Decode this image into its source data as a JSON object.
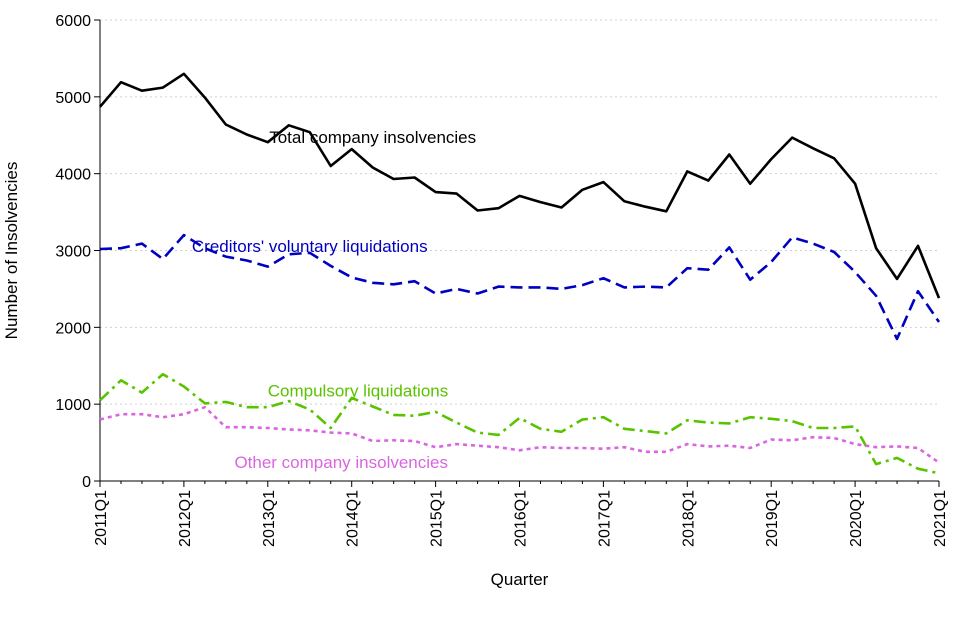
{
  "chart_data": {
    "type": "line",
    "xlabel": "Quarter",
    "ylabel": "Number of Insolvencies",
    "ylim": [
      0,
      6000
    ],
    "yticks": [
      0,
      1000,
      2000,
      3000,
      4000,
      5000,
      6000
    ],
    "grid": "horizontal-dotted",
    "x": [
      "2011Q1",
      "2011Q2",
      "2011Q3",
      "2011Q4",
      "2012Q1",
      "2012Q2",
      "2012Q3",
      "2012Q4",
      "2013Q1",
      "2013Q2",
      "2013Q3",
      "2013Q4",
      "2014Q1",
      "2014Q2",
      "2014Q3",
      "2014Q4",
      "2015Q1",
      "2015Q2",
      "2015Q3",
      "2015Q4",
      "2016Q1",
      "2016Q2",
      "2016Q3",
      "2016Q4",
      "2017Q1",
      "2017Q2",
      "2017Q3",
      "2017Q4",
      "2018Q1",
      "2018Q2",
      "2018Q3",
      "2018Q4",
      "2019Q1",
      "2019Q2",
      "2019Q3",
      "2019Q4",
      "2020Q1",
      "2020Q2",
      "2020Q3",
      "2020Q4",
      "2021Q1"
    ],
    "xtick_labels": [
      "2011Q1",
      "2012Q1",
      "2013Q1",
      "2014Q1",
      "2015Q1",
      "2016Q1",
      "2017Q1",
      "2018Q1",
      "2019Q1",
      "2020Q1",
      "2021Q1"
    ],
    "series": [
      {
        "name": "Total company insolvencies",
        "color": "#000000",
        "dash": "solid",
        "values": [
          4870,
          5190,
          5080,
          5120,
          5300,
          4990,
          4640,
          4510,
          4410,
          4630,
          4540,
          4100,
          4320,
          4080,
          3930,
          3950,
          3760,
          3740,
          3520,
          3550,
          3710,
          3630,
          3560,
          3790,
          3890,
          3640,
          3570,
          3510,
          4030,
          3910,
          4250,
          3870,
          4190,
          4470,
          4330,
          4200,
          3870,
          3030,
          2630,
          3060,
          2380
        ]
      },
      {
        "name": "Creditors' voluntary liquidations",
        "color": "#0000c0",
        "dash": "dashed",
        "values": [
          3020,
          3030,
          3090,
          2890,
          3200,
          3030,
          2920,
          2870,
          2790,
          2950,
          2970,
          2800,
          2650,
          2580,
          2560,
          2600,
          2440,
          2500,
          2440,
          2530,
          2520,
          2520,
          2500,
          2550,
          2640,
          2520,
          2530,
          2520,
          2770,
          2750,
          3040,
          2620,
          2850,
          3170,
          3090,
          2980,
          2720,
          2410,
          1850,
          2470,
          2070
        ]
      },
      {
        "name": "Compulsory liquidations",
        "color": "#5ac300",
        "dash": "dashdot",
        "values": [
          1050,
          1310,
          1150,
          1390,
          1230,
          1010,
          1030,
          960,
          960,
          1040,
          930,
          690,
          1080,
          970,
          860,
          850,
          900,
          760,
          630,
          600,
          820,
          680,
          640,
          800,
          830,
          680,
          650,
          620,
          790,
          760,
          750,
          830,
          810,
          780,
          690,
          690,
          710,
          220,
          300,
          160,
          100
        ]
      },
      {
        "name": "Other company insolvencies",
        "color": "#d966e0",
        "dash": "dotted",
        "values": [
          800,
          870,
          870,
          830,
          870,
          960,
          700,
          700,
          690,
          670,
          660,
          630,
          620,
          520,
          530,
          520,
          440,
          480,
          460,
          440,
          400,
          440,
          430,
          430,
          420,
          440,
          380,
          380,
          480,
          450,
          460,
          430,
          540,
          530,
          570,
          560,
          480,
          440,
          450,
          430,
          240
        ]
      }
    ],
    "annotations": [
      {
        "series": "Total company insolvencies",
        "text": "Total company insolvencies",
        "color": "#000000"
      },
      {
        "series": "Creditors' voluntary liquidations",
        "text": "Creditors' voluntary liquidations",
        "color": "#0000c0"
      },
      {
        "series": "Compulsory liquidations",
        "text": "Compulsory liquidations",
        "color": "#5ac300"
      },
      {
        "series": "Other company insolvencies",
        "text": "Other company insolvencies",
        "color": "#d966e0"
      }
    ]
  }
}
